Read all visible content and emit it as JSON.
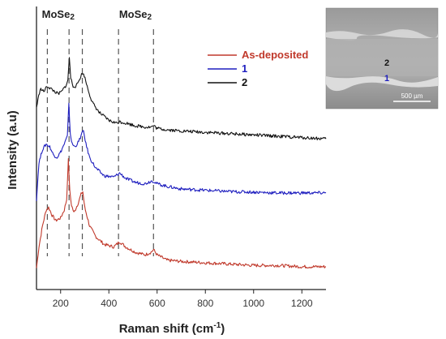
{
  "chart_data": {
    "type": "line",
    "title": "",
    "xlabel": "Raman shift (cm",
    "xlabel_sup": "-1",
    "xlabel_close": ")",
    "ylabel": "Intensity (a.u)",
    "xlim": [
      100,
      1300
    ],
    "ylim": [
      0,
      1
    ],
    "x_ticks": [
      "200",
      "400",
      "600",
      "800",
      "1000",
      "1200"
    ],
    "x_tick_values": [
      200,
      400,
      600,
      800,
      1000,
      1200
    ],
    "grid": false,
    "legend_position": "top-right",
    "peak_labels": [
      {
        "text": "MoSe",
        "sub": "2",
        "x": 190
      },
      {
        "text": "MoSe",
        "sub": "2",
        "x": 510
      }
    ],
    "peak_lines_x": [
      145,
      235,
      290,
      440,
      585
    ],
    "series": [
      {
        "name": "As-deposited",
        "color": "#c0392b",
        "offset": 0.0,
        "x": [
          100,
          110,
          125,
          140,
          150,
          165,
          180,
          200,
          215,
          225,
          232,
          238,
          245,
          255,
          270,
          285,
          292,
          300,
          320,
          345,
          380,
          420,
          445,
          470,
          510,
          550,
          575,
          585,
          600,
          640,
          700,
          800,
          900,
          1000,
          1100,
          1200,
          1300
        ],
        "y": [
          0.02,
          0.1,
          0.18,
          0.24,
          0.25,
          0.22,
          0.2,
          0.21,
          0.24,
          0.28,
          0.43,
          0.31,
          0.26,
          0.23,
          0.26,
          0.3,
          0.31,
          0.25,
          0.18,
          0.14,
          0.11,
          0.1,
          0.12,
          0.1,
          0.08,
          0.07,
          0.08,
          0.09,
          0.07,
          0.05,
          0.045,
          0.04,
          0.035,
          0.03,
          0.03,
          0.025,
          0.025
        ]
      },
      {
        "name": "1",
        "color": "#1f1fbf",
        "offset": 0.28,
        "x": [
          100,
          110,
          125,
          140,
          155,
          170,
          185,
          200,
          215,
          228,
          234,
          240,
          248,
          260,
          275,
          288,
          295,
          305,
          320,
          345,
          380,
          420,
          445,
          470,
          510,
          550,
          575,
          585,
          600,
          640,
          700,
          800,
          900,
          1000,
          1100,
          1200,
          1300
        ],
        "y": [
          0.0,
          0.14,
          0.19,
          0.21,
          0.2,
          0.17,
          0.16,
          0.18,
          0.21,
          0.24,
          0.36,
          0.25,
          0.21,
          0.2,
          0.22,
          0.25,
          0.26,
          0.21,
          0.16,
          0.12,
          0.09,
          0.085,
          0.1,
          0.08,
          0.065,
          0.06,
          0.07,
          0.07,
          0.06,
          0.05,
          0.04,
          0.035,
          0.03,
          0.028,
          0.025,
          0.025,
          0.025
        ]
      },
      {
        "name": "2",
        "color": "#111111",
        "offset": 0.51,
        "x": [
          100,
          115,
          130,
          145,
          160,
          175,
          190,
          205,
          220,
          230,
          236,
          242,
          252,
          265,
          280,
          290,
          298,
          310,
          330,
          360,
          400,
          430,
          445,
          470,
          510,
          550,
          575,
          585,
          600,
          640,
          700,
          800,
          900,
          1000,
          1100,
          1200,
          1300
        ],
        "y": [
          0.12,
          0.19,
          0.18,
          0.2,
          0.19,
          0.18,
          0.17,
          0.18,
          0.2,
          0.22,
          0.31,
          0.23,
          0.2,
          0.2,
          0.23,
          0.25,
          0.24,
          0.2,
          0.14,
          0.1,
          0.07,
          0.06,
          0.065,
          0.06,
          0.05,
          0.045,
          0.045,
          0.05,
          0.04,
          0.035,
          0.03,
          0.025,
          0.02,
          0.015,
          0.01,
          0.005,
          0.0
        ]
      }
    ]
  },
  "legend": {
    "items": [
      {
        "label": "As-deposited",
        "color": "#c0392b"
      },
      {
        "label": "1",
        "color": "#1f1fbf"
      },
      {
        "label": "2",
        "color": "#111111"
      }
    ]
  },
  "inset": {
    "label_top": "2",
    "label_bottom": "1",
    "label_top_color": "#111111",
    "label_bottom_color": "#1f1fbf",
    "scale_bar_text": "500 µm"
  }
}
